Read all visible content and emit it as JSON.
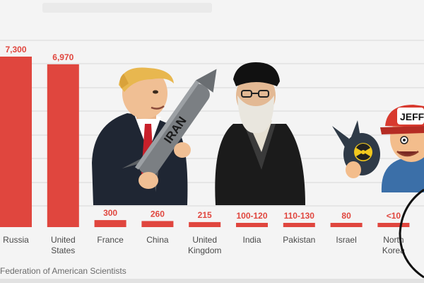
{
  "chart_data": {
    "type": "bar",
    "categories": [
      "Russia",
      "United\nStates",
      "France",
      "China",
      "United\nKingdom",
      "India",
      "Pakistan",
      "Israel",
      "North\nKorea"
    ],
    "values": [
      7300,
      6970,
      300,
      260,
      215,
      110,
      120,
      80,
      10
    ],
    "value_labels": [
      "7,300",
      "6,970",
      "300",
      "260",
      "215",
      "100-120",
      "110-130",
      "80",
      "<10"
    ],
    "ylim": [
      0,
      7300
    ],
    "grid": true,
    "bar_color": "#e0463e",
    "label_color": "#e0463e",
    "source": "Federation of American Scientists"
  },
  "overlays": {
    "missile_text": "IRAN",
    "cap_text": "JEFF"
  }
}
